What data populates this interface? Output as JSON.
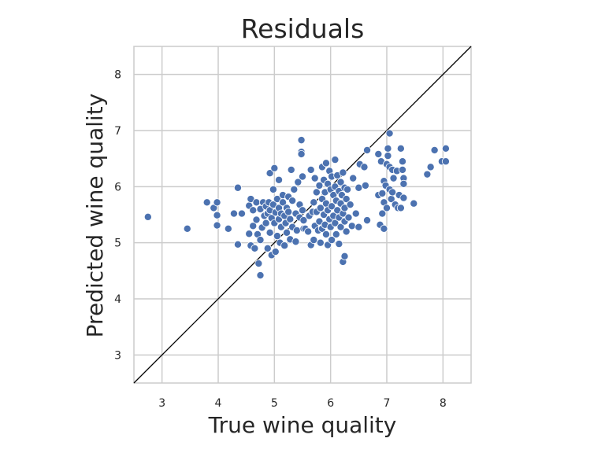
{
  "chart_data": {
    "type": "scatter",
    "title": "Residuals",
    "xlabel": "True wine quality",
    "ylabel": "Predicted wine quality",
    "xlim": [
      2.5,
      8.5
    ],
    "ylim": [
      2.5,
      8.5
    ],
    "xticks": [
      "3",
      "4",
      "5",
      "6",
      "7",
      "8"
    ],
    "yticks": [
      "3",
      "4",
      "5",
      "6",
      "7",
      "8"
    ],
    "grid": true,
    "reference_line": "y = x",
    "colors": {
      "points": "#4c72b0",
      "grid": "#cccccc",
      "line": "#000000",
      "text": "#262626"
    },
    "points": [
      [
        2.75,
        5.46
      ],
      [
        3.45,
        5.25
      ],
      [
        3.8,
        5.72
      ],
      [
        3.92,
        5.62
      ],
      [
        3.98,
        5.72
      ],
      [
        3.98,
        5.49
      ],
      [
        3.98,
        5.31
      ],
      [
        4.18,
        5.25
      ],
      [
        4.28,
        5.52
      ],
      [
        4.35,
        5.98
      ],
      [
        4.35,
        4.97
      ],
      [
        4.42,
        5.52
      ],
      [
        4.55,
        5.66
      ],
      [
        4.55,
        5.16
      ],
      [
        4.58,
        5.78
      ],
      [
        4.58,
        4.95
      ],
      [
        4.62,
        5.58
      ],
      [
        4.62,
        5.3
      ],
      [
        4.65,
        4.9
      ],
      [
        4.68,
        5.72
      ],
      [
        4.68,
        5.41
      ],
      [
        4.7,
        5.15
      ],
      [
        4.72,
        4.63
      ],
      [
        4.75,
        5.6
      ],
      [
        4.75,
        5.05
      ],
      [
        4.75,
        4.42
      ],
      [
        4.78,
        5.27
      ],
      [
        4.8,
        5.72
      ],
      [
        4.82,
        5.48
      ],
      [
        4.85,
        5.65
      ],
      [
        4.85,
        5.35
      ],
      [
        4.88,
        4.9
      ],
      [
        4.88,
        5.52
      ],
      [
        4.9,
        5.72
      ],
      [
        4.92,
        6.24
      ],
      [
        4.92,
        5.58
      ],
      [
        4.92,
        5.18
      ],
      [
        4.95,
        4.78
      ],
      [
        4.95,
        5.44
      ],
      [
        4.98,
        5.95
      ],
      [
        4.98,
        5.68
      ],
      [
        5.0,
        6.33
      ],
      [
        5.0,
        5.35
      ],
      [
        5.02,
        5.54
      ],
      [
        5.02,
        4.84
      ],
      [
        5.05,
        5.78
      ],
      [
        5.05,
        5.12
      ],
      [
        5.08,
        6.12
      ],
      [
        5.08,
        5.62
      ],
      [
        5.08,
        5.42
      ],
      [
        5.1,
        5.0
      ],
      [
        5.12,
        5.52
      ],
      [
        5.12,
        5.28
      ],
      [
        5.15,
        5.72
      ],
      [
        5.15,
        5.85
      ],
      [
        5.18,
        4.95
      ],
      [
        5.18,
        5.48
      ],
      [
        5.2,
        5.35
      ],
      [
        5.22,
        5.62
      ],
      [
        5.22,
        5.18
      ],
      [
        5.25,
        5.82
      ],
      [
        5.25,
        5.55
      ],
      [
        5.28,
        5.06
      ],
      [
        5.28,
        5.42
      ],
      [
        5.3,
        6.3
      ],
      [
        5.32,
        5.75
      ],
      [
        5.32,
        5.28
      ],
      [
        5.35,
        5.95
      ],
      [
        5.38,
        5.52
      ],
      [
        5.38,
        5.02
      ],
      [
        5.4,
        5.22
      ],
      [
        5.42,
        6.08
      ],
      [
        5.45,
        5.68
      ],
      [
        5.45,
        5.45
      ],
      [
        5.48,
        6.83
      ],
      [
        5.48,
        6.62
      ],
      [
        5.48,
        6.58
      ],
      [
        5.5,
        5.58
      ],
      [
        5.5,
        6.18
      ],
      [
        5.52,
        5.4
      ],
      [
        5.52,
        5.25
      ],
      [
        5.55,
        5.25
      ],
      [
        5.6,
        5.2
      ],
      [
        5.62,
        5.48
      ],
      [
        5.65,
        6.3
      ],
      [
        5.65,
        4.96
      ],
      [
        5.68,
        5.55
      ],
      [
        5.7,
        5.05
      ],
      [
        5.7,
        5.72
      ],
      [
        5.72,
        6.15
      ],
      [
        5.72,
        5.3
      ],
      [
        5.75,
        5.9
      ],
      [
        5.75,
        5.55
      ],
      [
        5.78,
        5.22
      ],
      [
        5.8,
        6.02
      ],
      [
        5.8,
        5.38
      ],
      [
        5.82,
        5.62
      ],
      [
        5.82,
        5.0
      ],
      [
        5.85,
        6.35
      ],
      [
        5.85,
        5.78
      ],
      [
        5.85,
        5.25
      ],
      [
        5.88,
        6.12
      ],
      [
        5.88,
        5.5
      ],
      [
        5.9,
        5.9
      ],
      [
        5.9,
        5.32
      ],
      [
        5.92,
        6.42
      ],
      [
        5.92,
        5.7
      ],
      [
        5.92,
        5.15
      ],
      [
        5.95,
        6.05
      ],
      [
        5.95,
        5.58
      ],
      [
        5.95,
        4.96
      ],
      [
        5.98,
        6.28
      ],
      [
        5.98,
        5.42
      ],
      [
        6.0,
        5.95
      ],
      [
        6.0,
        5.28
      ],
      [
        6.02,
        6.18
      ],
      [
        6.02,
        5.65
      ],
      [
        6.02,
        5.05
      ],
      [
        6.05,
        5.85
      ],
      [
        6.05,
        5.48
      ],
      [
        6.08,
        6.48
      ],
      [
        6.08,
        6.0
      ],
      [
        6.08,
        5.35
      ],
      [
        6.1,
        5.75
      ],
      [
        6.1,
        5.15
      ],
      [
        6.12,
        6.2
      ],
      [
        6.12,
        5.58
      ],
      [
        6.15,
        5.92
      ],
      [
        6.15,
        5.45
      ],
      [
        6.15,
        4.98
      ],
      [
        6.18,
        6.08
      ],
      [
        6.18,
        5.7
      ],
      [
        6.18,
        5.28
      ],
      [
        6.2,
        5.85
      ],
      [
        6.22,
        6.25
      ],
      [
        6.22,
        5.52
      ],
      [
        6.22,
        4.66
      ],
      [
        6.25,
        5.98
      ],
      [
        6.25,
        5.62
      ],
      [
        6.25,
        5.38
      ],
      [
        6.25,
        4.76
      ],
      [
        6.28,
        5.78
      ],
      [
        6.28,
        5.2
      ],
      [
        6.3,
        5.95
      ],
      [
        6.32,
        5.45
      ],
      [
        6.35,
        5.68
      ],
      [
        6.38,
        5.3
      ],
      [
        6.4,
        6.15
      ],
      [
        6.45,
        5.52
      ],
      [
        6.5,
        5.98
      ],
      [
        6.5,
        5.28
      ],
      [
        6.52,
        6.4
      ],
      [
        6.6,
        6.35
      ],
      [
        6.62,
        6.02
      ],
      [
        6.65,
        6.65
      ],
      [
        6.65,
        5.4
      ],
      [
        6.85,
        6.58
      ],
      [
        6.85,
        5.85
      ],
      [
        6.88,
        5.32
      ],
      [
        6.9,
        6.45
      ],
      [
        6.92,
        5.88
      ],
      [
        6.92,
        5.52
      ],
      [
        6.95,
        6.1
      ],
      [
        6.95,
        5.72
      ],
      [
        6.95,
        5.25
      ],
      [
        6.98,
        6.02
      ],
      [
        7.0,
        6.4
      ],
      [
        7.0,
        5.62
      ],
      [
        7.02,
        6.68
      ],
      [
        7.02,
        6.55
      ],
      [
        7.05,
        6.95
      ],
      [
        7.05,
        6.35
      ],
      [
        7.05,
        5.95
      ],
      [
        7.08,
        5.78
      ],
      [
        7.1,
        6.3
      ],
      [
        7.1,
        5.9
      ],
      [
        7.12,
        6.15
      ],
      [
        7.15,
        5.68
      ],
      [
        7.18,
        6.28
      ],
      [
        7.2,
        5.62
      ],
      [
        7.22,
        5.85
      ],
      [
        7.25,
        6.68
      ],
      [
        7.25,
        5.62
      ],
      [
        7.28,
        6.45
      ],
      [
        7.28,
        6.3
      ],
      [
        7.3,
        6.15
      ],
      [
        7.3,
        6.05
      ],
      [
        7.3,
        5.8
      ],
      [
        7.48,
        5.7
      ],
      [
        7.72,
        6.22
      ],
      [
        7.78,
        6.35
      ],
      [
        7.85,
        6.65
      ],
      [
        7.98,
        6.45
      ],
      [
        8.05,
        6.68
      ],
      [
        8.05,
        6.45
      ]
    ]
  }
}
